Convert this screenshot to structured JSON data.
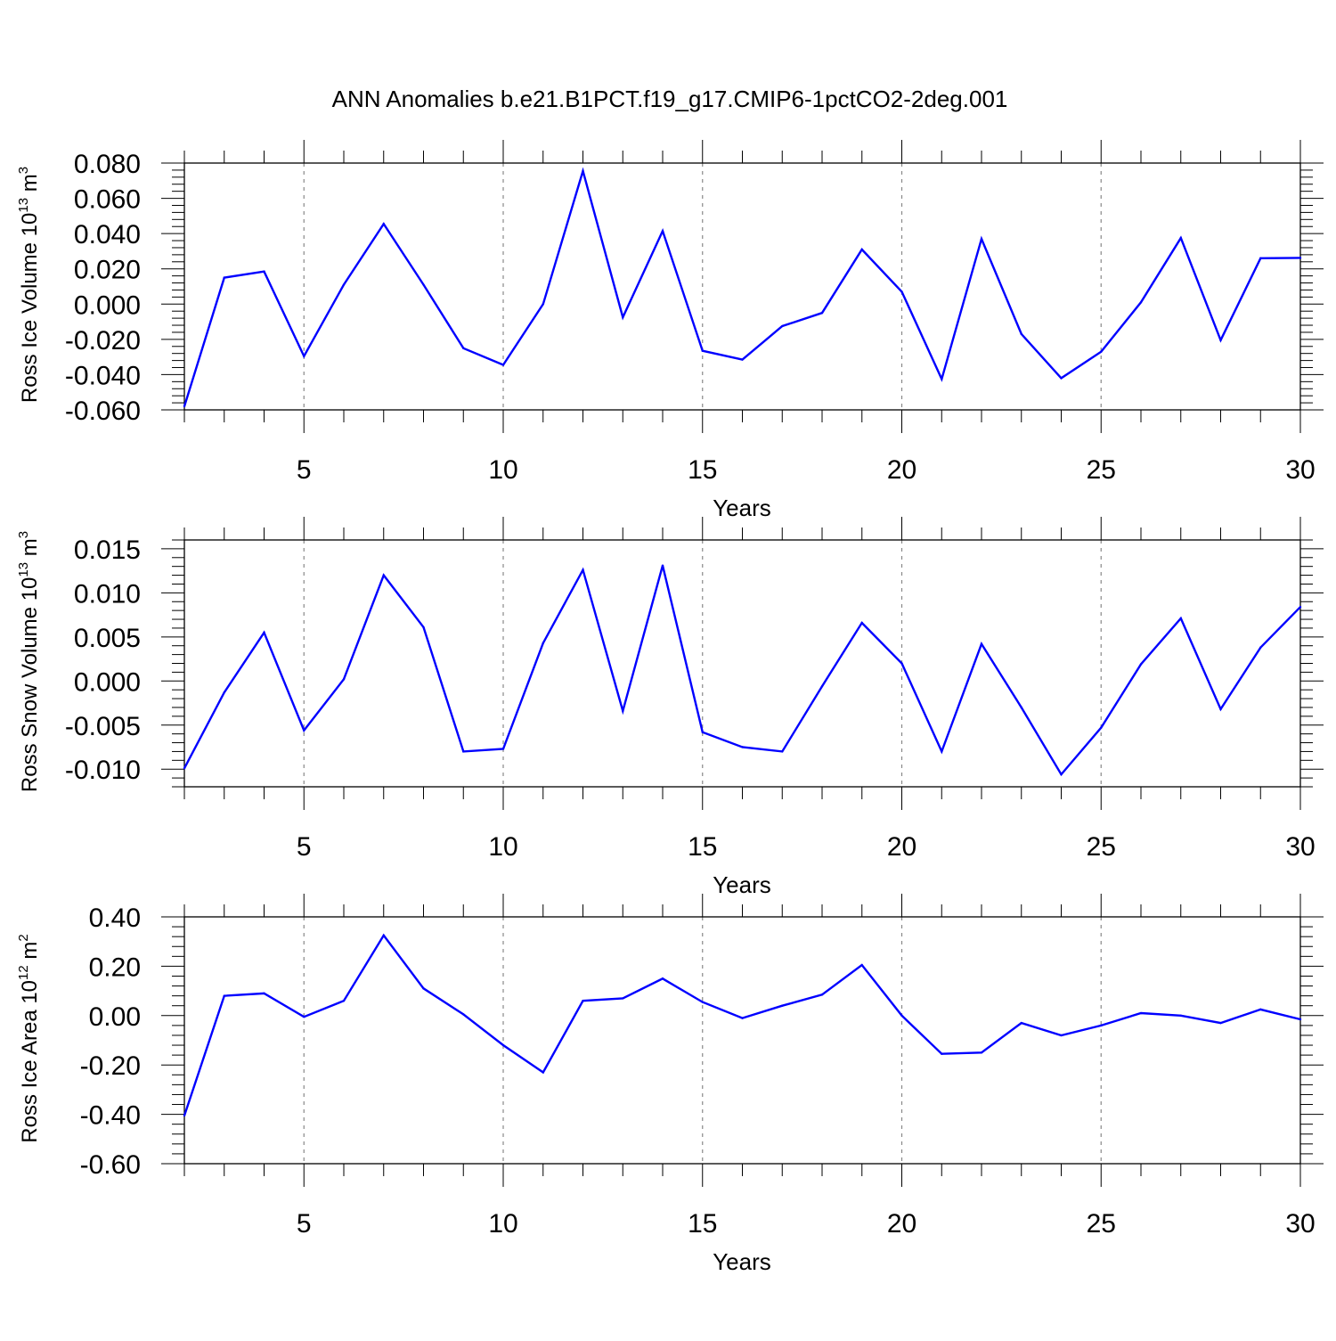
{
  "title": "ANN Anomalies b.e21.B1PCT.f19_g17.CMIP6-1pctCO2-2deg.001",
  "colors": {
    "line": "#0000ff",
    "axis": "#000000",
    "grid": "#888888"
  },
  "chart_data": [
    {
      "type": "line",
      "xlabel": "Years",
      "ylabel": {
        "text": "Ross Ice Volume 10",
        "exp": "13",
        "unit": " m",
        "unit_exp": "3"
      },
      "xlim": [
        2,
        30
      ],
      "ylim": [
        -0.06,
        0.08
      ],
      "xticks": [
        "5",
        "10",
        "15",
        "20",
        "25",
        "30"
      ],
      "yticks": [
        "-0.060",
        "-0.040",
        "-0.020",
        "0.000",
        "0.020",
        "0.040",
        "0.060",
        "0.080"
      ],
      "x": [
        2,
        3,
        4,
        5,
        6,
        7,
        8,
        9,
        10,
        11,
        12,
        13,
        14,
        15,
        16,
        17,
        18,
        19,
        20,
        21,
        22,
        23,
        24,
        25,
        26,
        27,
        28,
        29,
        30
      ],
      "values": [
        -0.058,
        0.015,
        0.0185,
        -0.0295,
        0.011,
        0.0455,
        0.011,
        -0.025,
        -0.0345,
        0.0,
        0.0755,
        -0.0075,
        0.0415,
        -0.0265,
        -0.0315,
        -0.0125,
        -0.005,
        0.031,
        0.007,
        -0.0425,
        0.037,
        -0.017,
        -0.042,
        -0.027,
        0.001,
        0.0375,
        -0.0205,
        0.026,
        0.0262
      ]
    },
    {
      "type": "line",
      "xlabel": "Years",
      "ylabel": {
        "text": "Ross Snow Volume 10",
        "exp": "13",
        "unit": " m",
        "unit_exp": "3"
      },
      "xlim": [
        2,
        30
      ],
      "ylim": [
        -0.012,
        0.016
      ],
      "xticks": [
        "5",
        "10",
        "15",
        "20",
        "25",
        "30"
      ],
      "yticks": [
        "-0.010",
        "-0.005",
        "0.000",
        "0.005",
        "0.010",
        "0.015"
      ],
      "x": [
        2,
        3,
        4,
        5,
        6,
        7,
        8,
        9,
        10,
        11,
        12,
        13,
        14,
        15,
        16,
        17,
        18,
        19,
        20,
        21,
        22,
        23,
        24,
        25,
        26,
        27,
        28,
        29,
        30
      ],
      "values": [
        -0.0099,
        -0.0013,
        0.0055,
        -0.0056,
        0.0002,
        0.012,
        0.0061,
        -0.008,
        -0.0077,
        0.0043,
        0.0126,
        -0.0034,
        0.0131,
        -0.0058,
        -0.0075,
        -0.008,
        -0.0006,
        0.0066,
        0.002,
        -0.008,
        0.0042,
        -0.003,
        -0.0106,
        -0.0053,
        0.0019,
        0.0071,
        -0.0032,
        0.0038,
        0.0084
      ]
    },
    {
      "type": "line",
      "xlabel": "Years",
      "ylabel": {
        "text": "Ross Ice Area 10",
        "exp": "12",
        "unit": " m",
        "unit_exp": "2"
      },
      "xlim": [
        2,
        30
      ],
      "ylim": [
        -0.6,
        0.4
      ],
      "xticks": [
        "5",
        "10",
        "15",
        "20",
        "25",
        "30"
      ],
      "yticks": [
        "-0.60",
        "-0.40",
        "-0.20",
        "0.00",
        "0.20",
        "0.40"
      ],
      "x": [
        2,
        3,
        4,
        5,
        6,
        7,
        8,
        9,
        10,
        11,
        12,
        13,
        14,
        15,
        16,
        17,
        18,
        19,
        20,
        21,
        22,
        23,
        24,
        25,
        26,
        27,
        28,
        29,
        30
      ],
      "values": [
        -0.405,
        0.08,
        0.09,
        -0.005,
        0.06,
        0.325,
        0.11,
        0.005,
        -0.12,
        -0.23,
        0.06,
        0.07,
        0.15,
        0.055,
        -0.01,
        0.04,
        0.085,
        0.205,
        0.0,
        -0.155,
        -0.15,
        -0.03,
        -0.08,
        -0.04,
        0.01,
        0.0,
        -0.03,
        0.025,
        -0.015
      ]
    }
  ]
}
